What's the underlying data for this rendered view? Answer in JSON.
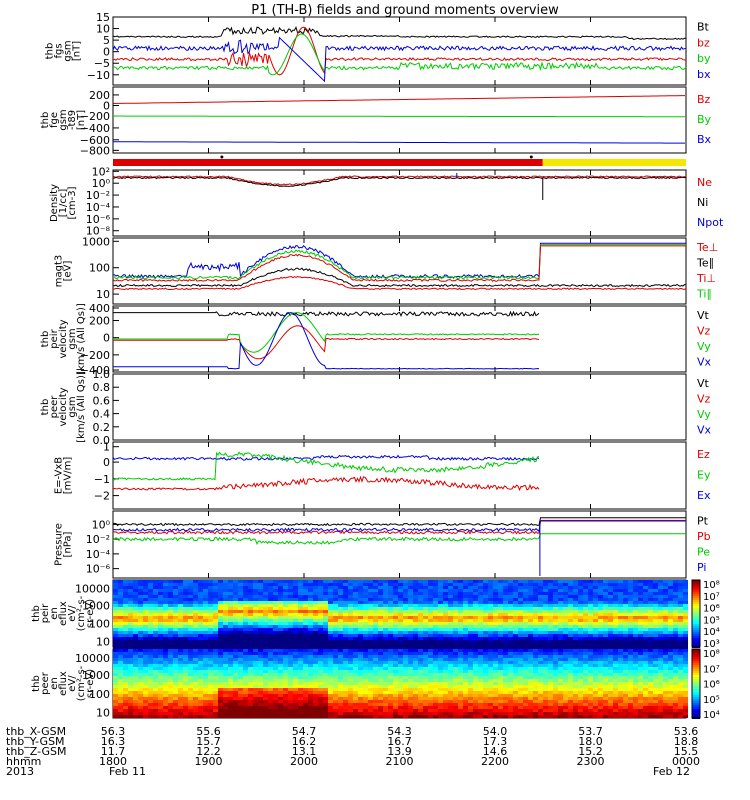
{
  "title": "P1 (TH-B) fields and ground moments overview",
  "colors": {
    "black": "#000000",
    "red": "#dd0000",
    "green": "#00cc00",
    "blue": "#0000dd",
    "yellow": "#f5e800"
  },
  "chart_data": [
    {
      "type": "line",
      "id": "p1",
      "ylabel": [
        "thb",
        "fgs",
        "gsm",
        "[nT]"
      ],
      "yticks": [
        "15",
        "10",
        "5",
        "0",
        "−5",
        "−10"
      ],
      "series": [
        {
          "name": "Bt",
          "color": "black"
        },
        {
          "name": "bz",
          "color": "red"
        },
        {
          "name": "by",
          "color": "green"
        },
        {
          "name": "bx",
          "color": "blue"
        }
      ]
    },
    {
      "type": "line",
      "id": "p2",
      "ylabel": [
        "thb",
        "fge",
        "gsm",
        "-t89",
        "[nT]"
      ],
      "yticks": [
        "200",
        "0",
        "−200",
        "−400",
        "−600",
        "−800"
      ],
      "series": [
        {
          "name": "Bz",
          "color": "red"
        },
        {
          "name": "By",
          "color": "green"
        },
        {
          "name": "Bx",
          "color": "blue"
        }
      ]
    },
    {
      "type": "line",
      "id": "p3",
      "ylabel": [
        "Density",
        "[1/cc]",
        "[cm-3]"
      ],
      "yticks": [
        "10²",
        "10⁰",
        "10⁻²",
        "10⁻⁴",
        "10⁻⁶",
        "10⁻⁸"
      ],
      "series": [
        {
          "name": "Ne",
          "color": "red"
        },
        {
          "name": "Ni",
          "color": "black"
        },
        {
          "name": "Npot",
          "color": "blue"
        }
      ]
    },
    {
      "type": "line",
      "id": "p4",
      "ylabel": [
        "magt3",
        "[eV]"
      ],
      "yticks": [
        "1000",
        "100",
        "10"
      ],
      "series": [
        {
          "name": "Te⊥",
          "color": "red"
        },
        {
          "name": "Te∥",
          "color": "black"
        },
        {
          "name": "Ti⊥",
          "color": "red"
        },
        {
          "name": "Ti∥",
          "color": "green"
        }
      ]
    },
    {
      "type": "line",
      "id": "p5",
      "ylabel": [
        "thb",
        "peir",
        "velocity",
        "gsm",
        "[km/s (All Qs)]"
      ],
      "yticks": [
        "400",
        "200",
        "0",
        "−200",
        "−400"
      ],
      "series": [
        {
          "name": "Vt",
          "color": "black"
        },
        {
          "name": "Vz",
          "color": "red"
        },
        {
          "name": "Vy",
          "color": "green"
        },
        {
          "name": "Vx",
          "color": "blue"
        }
      ]
    },
    {
      "type": "line",
      "id": "p6",
      "ylabel": [
        "thb",
        "peer",
        "velocity",
        "gsm",
        "[km/s (All Qs)]"
      ],
      "yticks": [
        "1.0",
        "0.8",
        "0.6",
        "0.4",
        "0.2",
        "0.0"
      ],
      "series": [
        {
          "name": "Vt",
          "color": "black"
        },
        {
          "name": "Vz",
          "color": "red"
        },
        {
          "name": "Vy",
          "color": "green"
        },
        {
          "name": "Vx",
          "color": "blue"
        }
      ]
    },
    {
      "type": "line",
      "id": "p7",
      "ylabel": [
        "E=-VxB",
        "[mV/m]"
      ],
      "yticks": [
        "1",
        "0",
        "−1",
        "−2"
      ],
      "series": [
        {
          "name": "Ez",
          "color": "red"
        },
        {
          "name": "Ey",
          "color": "green"
        },
        {
          "name": "Ex",
          "color": "blue"
        }
      ]
    },
    {
      "type": "line",
      "id": "p8",
      "ylabel": [
        "Pressure",
        "[nPa]"
      ],
      "yticks": [
        "10⁰",
        "10⁻²",
        "10⁻⁴",
        "10⁻⁶"
      ],
      "series": [
        {
          "name": "Pt",
          "color": "black"
        },
        {
          "name": "Pb",
          "color": "red"
        },
        {
          "name": "Pe",
          "color": "green"
        },
        {
          "name": "Pi",
          "color": "blue"
        }
      ]
    },
    {
      "type": "heatmap",
      "id": "p9",
      "ylabel": [
        "thb",
        "peir",
        "en",
        "eflux",
        "eV/",
        "(cm²-s-",
        "sr-eV)"
      ],
      "yticks": [
        "10000",
        "1000",
        "100",
        "10"
      ],
      "colorbar": [
        "10⁸",
        "10⁷",
        "10⁶",
        "10⁵",
        "10⁴",
        "10³"
      ]
    },
    {
      "type": "heatmap",
      "id": "p10",
      "ylabel": [
        "thb",
        "peer",
        "en",
        "eflux",
        "eV/",
        "(cm²-s-",
        "sr-eV)"
      ],
      "yticks": [
        "10000",
        "1000",
        "100",
        "10"
      ],
      "colorbar": [
        "10⁸",
        "10⁷",
        "10⁶",
        "10⁵",
        "10⁴"
      ]
    }
  ],
  "xaxis": {
    "rows": [
      {
        "label": "thb_X-GSM",
        "values": [
          "56.3",
          "55.6",
          "54.7",
          "54.3",
          "54.0",
          "53.7",
          "53.6"
        ]
      },
      {
        "label": "thb_Y-GSM",
        "values": [
          "16.3",
          "15.7",
          "16.2",
          "16.7",
          "17.3",
          "18.0",
          "18.8"
        ]
      },
      {
        "label": "thb_Z-GSM",
        "values": [
          "11.7",
          "12.2",
          "13.1",
          "13.9",
          "14.6",
          "15.2",
          "15.5"
        ]
      },
      {
        "label": "hhmm",
        "values": [
          "1800",
          "1900",
          "2000",
          "2100",
          "2200",
          "2300",
          "0000"
        ]
      },
      {
        "label": "2013",
        "values": [
          "Feb 11",
          "",
          "",
          "",
          "",
          "",
          "Feb 12"
        ]
      }
    ]
  }
}
